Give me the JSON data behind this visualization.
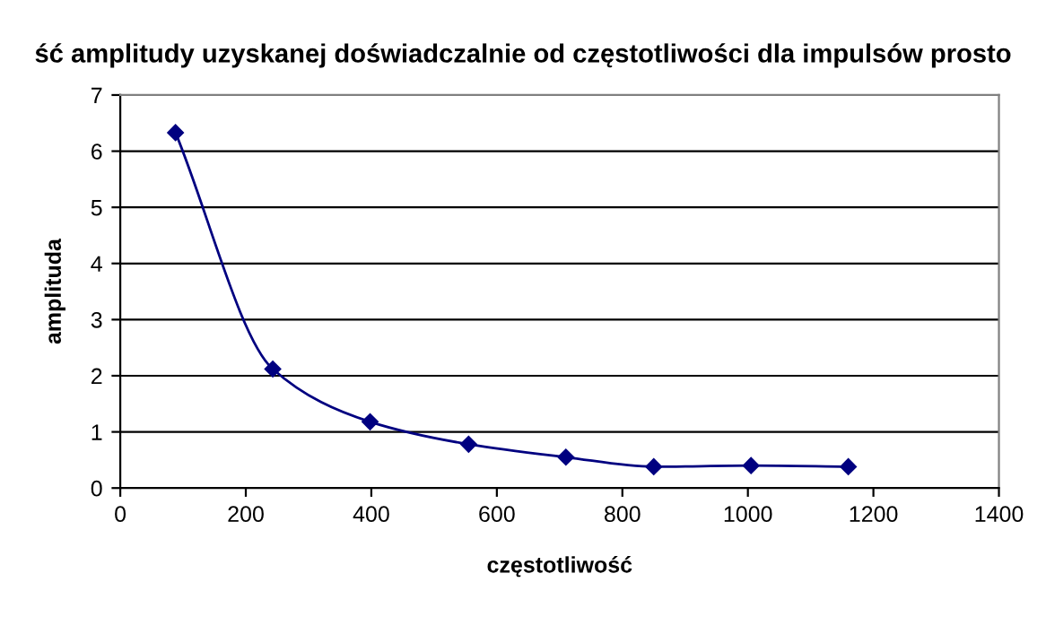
{
  "chart_data": {
    "type": "line",
    "title": "ść amplitudy uzyskanej doświadczalnie od częstotliwości dla impulsów prosto",
    "xlabel": "częstotliwość",
    "ylabel": "amplituda",
    "x": [
      88,
      243,
      398,
      555,
      710,
      850,
      1005,
      1160
    ],
    "series": [
      {
        "color": "#000080",
        "values": [
          6.33,
          2.12,
          1.18,
          0.78,
          0.55,
          0.38,
          0.4,
          0.38
        ]
      }
    ],
    "xlim": [
      0,
      1400
    ],
    "xticks": [
      0,
      200,
      400,
      600,
      800,
      1000,
      1200,
      1400
    ],
    "ylim": [
      0,
      7
    ],
    "yticks": [
      0,
      1,
      2,
      3,
      4,
      5,
      6,
      7
    ],
    "grid": "y",
    "marker": "diamond",
    "line_style": "solid",
    "legend": false
  }
}
